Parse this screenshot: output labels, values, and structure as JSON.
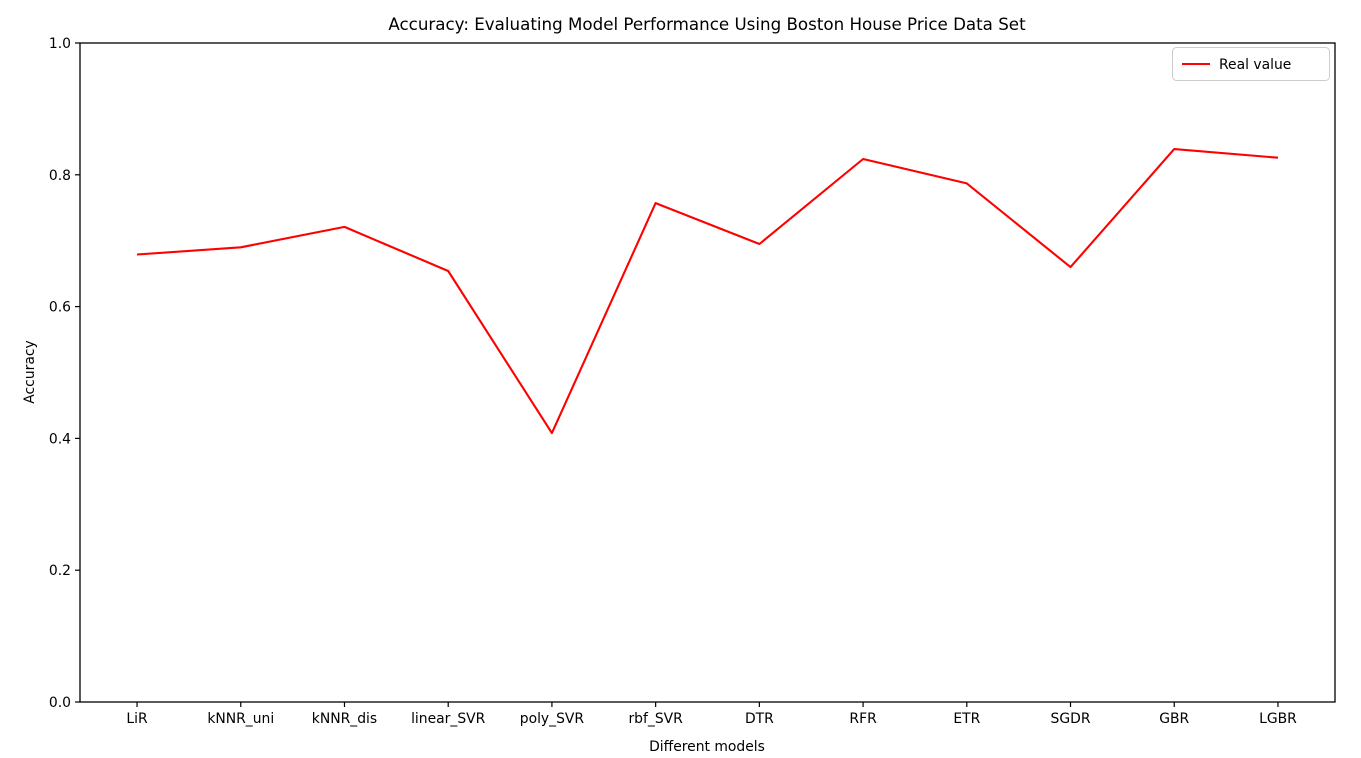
{
  "figure": {
    "background_color": "#ffffff",
    "axis_color": "#000000",
    "legend_border_color": "#cccccc",
    "legend_background_color": "#ffffff"
  },
  "chart_data": {
    "type": "line",
    "title": "Accuracy: Evaluating Model Performance Using Boston House Price Data Set",
    "xlabel": "Different models",
    "ylabel": "Accuracy",
    "categories": [
      "LiR",
      "kNNR_uni",
      "kNNR_dis",
      "linear_SVR",
      "poly_SVR",
      "rbf_SVR",
      "DTR",
      "RFR",
      "ETR",
      "SGDR",
      "GBR",
      "LGBR"
    ],
    "series": [
      {
        "name": "Real value",
        "color": "#ff0000",
        "values": [
          0.679,
          0.69,
          0.721,
          0.654,
          0.408,
          0.757,
          0.695,
          0.824,
          0.787,
          0.66,
          0.839,
          0.826
        ]
      }
    ],
    "ylim": [
      0.0,
      1.0
    ],
    "y_ticks": [
      "0.0",
      "0.2",
      "0.4",
      "0.6",
      "0.8",
      "1.0"
    ],
    "grid": false,
    "legend_position": "upper right"
  }
}
